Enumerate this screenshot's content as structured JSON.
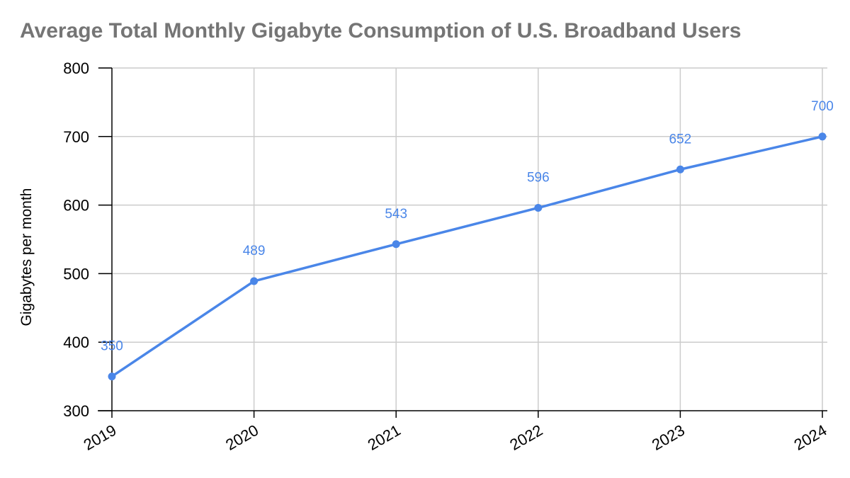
{
  "chart_data": {
    "type": "line",
    "title": "Average Total Monthly Gigabyte Consumption of U.S. Broadband Users",
    "xlabel": "",
    "ylabel": "Gigabytes per month",
    "categories": [
      "2019",
      "2020",
      "2021",
      "2022",
      "2023",
      "2024"
    ],
    "series": [
      {
        "values": [
          350,
          489,
          543,
          596,
          652,
          700
        ],
        "color": "#4a86e8"
      }
    ],
    "ylim": [
      300,
      800
    ],
    "yticks": [
      300,
      400,
      500,
      600,
      700,
      800
    ],
    "ytick_labels": [
      "300",
      "400",
      "500",
      "600",
      "700",
      "800"
    ],
    "data_labels": [
      "350",
      "489",
      "543",
      "596",
      "652",
      "700"
    ],
    "grid": true,
    "legend": "none",
    "colors": {
      "title": "#757575",
      "line": "#4a86e8",
      "grid": "#cccccc",
      "axis": "#000000"
    }
  }
}
